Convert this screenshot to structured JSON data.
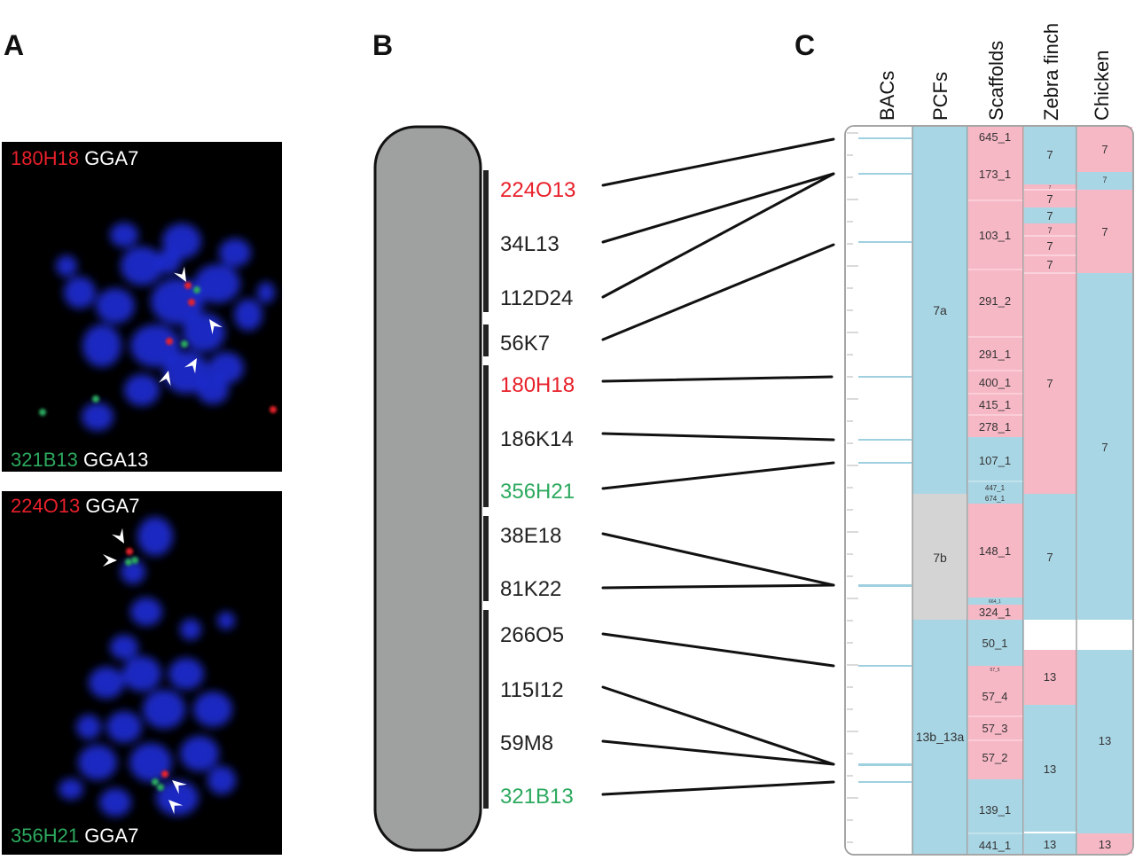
{
  "panel_a": {
    "letter": "A",
    "images": [
      {
        "top": [
          {
            "text": "180H18",
            "color": "#e8202a"
          },
          {
            "text": " GGA7",
            "color": "#ffffff"
          }
        ],
        "bottom": [
          {
            "text": "321B13",
            "color": "#2ca95e"
          },
          {
            "text": " GGA13",
            "color": "#ffffff"
          }
        ]
      },
      {
        "top": [
          {
            "text": "224O13",
            "color": "#e8202a"
          },
          {
            "text": " GGA7",
            "color": "#ffffff"
          }
        ],
        "bottom": [
          {
            "text": "356H21",
            "color": "#2ca95e"
          },
          {
            "text": " GGA7",
            "color": "#ffffff"
          }
        ]
      }
    ]
  },
  "panel_b": {
    "letter": "B",
    "probes": [
      {
        "label": "224O13",
        "color": "#e8202a"
      },
      {
        "label": "34L13",
        "color": "#222222"
      },
      {
        "label": "112D24",
        "color": "#222222"
      },
      {
        "label": "56K7",
        "color": "#222222"
      },
      {
        "label": "180H18",
        "color": "#e8202a"
      },
      {
        "label": "186K14",
        "color": "#222222"
      },
      {
        "label": "356H21",
        "color": "#2ca95e"
      },
      {
        "label": "38E18",
        "color": "#222222"
      },
      {
        "label": "81K22",
        "color": "#222222"
      },
      {
        "label": "266O5",
        "color": "#222222"
      },
      {
        "label": "115I12",
        "color": "#222222"
      },
      {
        "label": "59M8",
        "color": "#222222"
      },
      {
        "label": "321B13",
        "color": "#2ca95e"
      }
    ]
  },
  "panel_c": {
    "letter": "C",
    "column_headers": [
      "BACs",
      "PCFs",
      "Scaffolds",
      "Zebra finch",
      "Chicken"
    ],
    "pcfs": [
      "7a",
      "7b",
      "13b_13a"
    ],
    "scaffolds": [
      "645_1",
      "173_1",
      "103_1",
      "291_2",
      "291_1",
      "400_1",
      "415_1",
      "278_1",
      "107_1",
      "447_1",
      "674_1",
      "148_1",
      "664_1",
      "324_1",
      "50_1",
      "57_5",
      "57_4",
      "57_3",
      "57_2",
      "139_1",
      "441_1"
    ],
    "zebra_finch": [
      "7",
      "7",
      "7",
      "7",
      "7",
      "7",
      "7",
      "7",
      "7",
      "13",
      "13",
      "13"
    ],
    "chicken": [
      "7",
      "7",
      "7",
      "7",
      "13",
      "13"
    ]
  },
  "colors": {
    "pink": "#f7b8c6",
    "blue": "#a9d6e5",
    "gray": "#d4d4d4",
    "red": "#e8202a",
    "green": "#2ca95e"
  }
}
